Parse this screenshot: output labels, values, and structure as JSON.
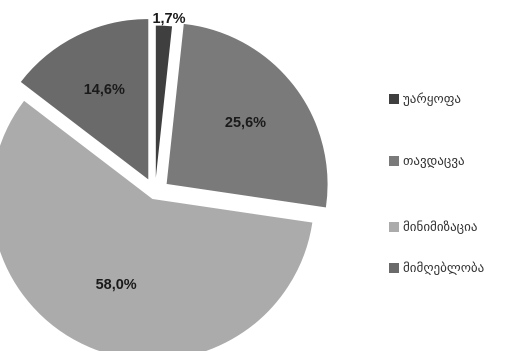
{
  "chart_data": {
    "type": "pie",
    "exploded": true,
    "start_angle_deg": 0,
    "direction": "clockwise",
    "legend_position": "right",
    "categories": [
      "უარყოფა",
      "თავდაცვა",
      "მინიმიზაცია",
      "მიმღებლობა"
    ],
    "values": [
      1.7,
      25.6,
      58.0,
      14.6
    ],
    "labels": [
      "1,7%",
      "25,6%",
      "58,0%",
      "14,6%"
    ],
    "colors": [
      "#3f3f3f",
      "#7a7a7a",
      "#ababab",
      "#6a6a6a"
    ]
  }
}
